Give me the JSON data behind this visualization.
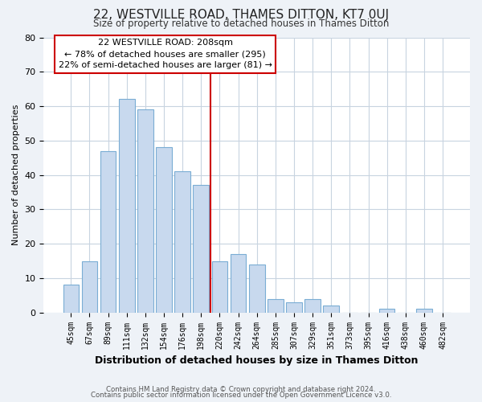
{
  "title": "22, WESTVILLE ROAD, THAMES DITTON, KT7 0UJ",
  "subtitle": "Size of property relative to detached houses in Thames Ditton",
  "xlabel": "Distribution of detached houses by size in Thames Ditton",
  "ylabel": "Number of detached properties",
  "bar_labels": [
    "45sqm",
    "67sqm",
    "89sqm",
    "111sqm",
    "132sqm",
    "154sqm",
    "176sqm",
    "198sqm",
    "220sqm",
    "242sqm",
    "264sqm",
    "285sqm",
    "307sqm",
    "329sqm",
    "351sqm",
    "373sqm",
    "395sqm",
    "416sqm",
    "438sqm",
    "460sqm",
    "482sqm"
  ],
  "bar_values": [
    8,
    15,
    47,
    62,
    59,
    48,
    41,
    37,
    15,
    17,
    14,
    4,
    3,
    4,
    2,
    0,
    0,
    1,
    0,
    1,
    0
  ],
  "bar_color": "#c8d9ee",
  "bar_edge_color": "#7aadd4",
  "vline_color": "#cc0000",
  "annotation_lines": [
    "22 WESTVILLE ROAD: 208sqm",
    "← 78% of detached houses are smaller (295)",
    "22% of semi-detached houses are larger (81) →"
  ],
  "ylim": [
    0,
    80
  ],
  "yticks": [
    0,
    10,
    20,
    30,
    40,
    50,
    60,
    70,
    80
  ],
  "footnote1": "Contains HM Land Registry data © Crown copyright and database right 2024.",
  "footnote2": "Contains public sector information licensed under the Open Government Licence v3.0.",
  "background_color": "#eef2f7",
  "plot_background": "#ffffff",
  "grid_color": "#c8d4e0"
}
